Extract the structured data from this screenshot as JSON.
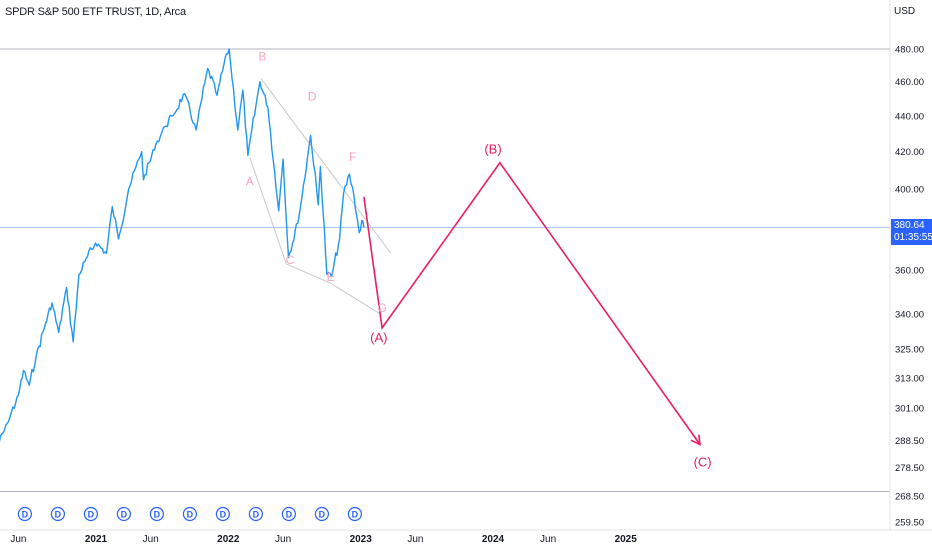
{
  "header": {
    "symbol_title": "SPDR S&P 500 ETF TRUST, 1D, Arca",
    "currency": "USD"
  },
  "price_badge": {
    "price": "380.64",
    "countdown": "01:35:55",
    "color": "#2962ff"
  },
  "colors": {
    "price_line": "#2196f3",
    "forecast": "#e91e63",
    "pattern_lines": "#c8c8cc",
    "wave_labels": "#f4a6c0",
    "dividend": "#2962ff",
    "axis_text": "#131722"
  },
  "chart_data": {
    "type": "line",
    "title": "SPDR S&P 500 ETF TRUST, 1D, Arca",
    "y_scale": "log",
    "y_unit": "USD",
    "ylim": [
      256,
      500
    ],
    "y_ticks": [
      "480.00",
      "460.00",
      "440.00",
      "420.00",
      "400.00",
      "360.00",
      "340.00",
      "325.00",
      "313.00",
      "301.00",
      "288.50",
      "278.50",
      "268.50",
      "259.50"
    ],
    "x_ticks": [
      {
        "label": "Jun",
        "date": "2020-06-01"
      },
      {
        "label": "2021",
        "date": "2021-01-01"
      },
      {
        "label": "Jun",
        "date": "2021-06-01"
      },
      {
        "label": "2022",
        "date": "2022-01-01"
      },
      {
        "label": "Jun",
        "date": "2022-06-01"
      },
      {
        "label": "2023",
        "date": "2023-01-01"
      },
      {
        "label": "Jun",
        "date": "2023-06-01"
      },
      {
        "label": "2024",
        "date": "2024-01-01"
      },
      {
        "label": "Jun",
        "date": "2024-06-01"
      },
      {
        "label": "2025",
        "date": "2025-01-01"
      }
    ],
    "horizontal_lines": [
      {
        "value": 479.98,
        "color": "#b2b5be"
      },
      {
        "value": 380.64,
        "color": "#9fc3f7"
      },
      {
        "value": 270,
        "color": "#b2b5be"
      }
    ],
    "series": [
      {
        "color": "#2196f3",
        "points": [
          [
            "2020-04-01",
            285
          ],
          [
            "2020-05-01",
            295
          ],
          [
            "2020-06-01",
            306
          ],
          [
            "2020-06-15",
            316
          ],
          [
            "2020-07-01",
            310
          ],
          [
            "2020-07-20",
            322
          ],
          [
            "2020-08-15",
            336
          ],
          [
            "2020-09-02",
            345
          ],
          [
            "2020-09-20",
            332
          ],
          [
            "2020-10-12",
            352
          ],
          [
            "2020-10-30",
            328
          ],
          [
            "2020-11-15",
            358
          ],
          [
            "2020-12-01",
            364
          ],
          [
            "2020-12-31",
            373
          ],
          [
            "2021-01-30",
            368
          ],
          [
            "2021-02-15",
            391
          ],
          [
            "2021-03-04",
            375
          ],
          [
            "2021-04-01",
            400
          ],
          [
            "2021-05-07",
            420
          ],
          [
            "2021-05-12",
            405
          ],
          [
            "2021-06-15",
            424
          ],
          [
            "2021-07-10",
            434
          ],
          [
            "2021-08-01",
            440
          ],
          [
            "2021-09-02",
            453
          ],
          [
            "2021-10-04",
            432
          ],
          [
            "2021-11-05",
            468
          ],
          [
            "2021-12-01",
            452
          ],
          [
            "2021-12-27",
            477
          ],
          [
            "2022-01-03",
            479.98
          ],
          [
            "2022-01-27",
            432
          ],
          [
            "2022-02-10",
            455
          ],
          [
            "2022-02-24",
            418
          ],
          [
            "2022-03-29",
            460
          ],
          [
            "2022-04-20",
            445
          ],
          [
            "2022-05-20",
            389
          ],
          [
            "2022-06-01",
            416
          ],
          [
            "2022-06-16",
            366
          ],
          [
            "2022-07-15",
            386
          ],
          [
            "2022-08-16",
            429
          ],
          [
            "2022-09-06",
            392
          ],
          [
            "2022-09-12",
            412
          ],
          [
            "2022-09-30",
            358
          ],
          [
            "2022-10-13",
            357
          ],
          [
            "2022-11-04",
            375
          ],
          [
            "2022-11-15",
            398
          ],
          [
            "2022-12-01",
            408
          ],
          [
            "2022-12-14",
            396
          ],
          [
            "2022-12-28",
            378
          ],
          [
            "2023-01-04",
            384
          ],
          [
            "2023-01-10",
            380.64
          ]
        ]
      }
    ],
    "forecast_path": [
      [
        "2023-01-10",
        396
      ],
      [
        "2023-03-01",
        334
      ],
      [
        "2024-01-20",
        414
      ],
      [
        "2025-07-25",
        287
      ]
    ],
    "pattern_lines": [
      [
        [
          "2022-04-01",
          462
        ],
        [
          "2023-03-25",
          368
        ]
      ],
      [
        [
          "2022-03-01",
          417
        ],
        [
          "2022-06-10",
          363
        ],
        [
          "2022-10-10",
          354
        ],
        [
          "2023-02-25",
          340
        ]
      ]
    ],
    "annotations": [
      {
        "text": "B",
        "x": "2022-04-05",
        "y": 473,
        "role": "pattern"
      },
      {
        "text": "A",
        "x": "2022-03-01",
        "y": 402,
        "role": "pattern"
      },
      {
        "text": "D",
        "x": "2022-08-20",
        "y": 449,
        "role": "pattern"
      },
      {
        "text": "C",
        "x": "2022-06-20",
        "y": 363,
        "role": "pattern"
      },
      {
        "text": "F",
        "x": "2022-12-10",
        "y": 415,
        "role": "pattern"
      },
      {
        "text": "E",
        "x": "2022-10-10",
        "y": 355,
        "role": "pattern"
      },
      {
        "text": "G",
        "x": "2023-03-01",
        "y": 341,
        "role": "pattern"
      },
      {
        "text": "(A)",
        "x": "2023-02-20",
        "y": 328,
        "role": "wave"
      },
      {
        "text": "(B)",
        "x": "2024-01-01",
        "y": 419,
        "role": "wave"
      },
      {
        "text": "(C)",
        "x": "2025-08-01",
        "y": 279,
        "role": "wave"
      }
    ],
    "dividend_markers": {
      "label": "D",
      "dates": [
        "2020-06-19",
        "2020-09-18",
        "2020-12-18",
        "2021-03-19",
        "2021-06-18",
        "2021-09-17",
        "2021-12-17",
        "2022-03-18",
        "2022-06-17",
        "2022-09-16",
        "2022-12-16"
      ]
    }
  }
}
